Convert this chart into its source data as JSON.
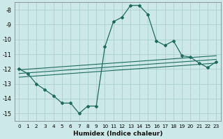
{
  "xlabel": "Humidex (Indice chaleur)",
  "background_color": "#cce8e8",
  "grid_color": "#aacfcf",
  "line_color": "#1e6b5e",
  "xlim": [
    -0.5,
    23.5
  ],
  "ylim": [
    -15.5,
    -7.5
  ],
  "yticks": [
    -15,
    -14,
    -13,
    -12,
    -11,
    -10,
    -9,
    -8
  ],
  "xticks": [
    0,
    1,
    2,
    3,
    4,
    5,
    6,
    7,
    8,
    9,
    10,
    11,
    12,
    13,
    14,
    15,
    16,
    17,
    18,
    19,
    20,
    21,
    22,
    23
  ],
  "main_x": [
    0,
    1,
    2,
    3,
    4,
    5,
    6,
    7,
    8,
    9,
    10,
    11,
    12,
    13,
    14,
    15,
    16,
    17,
    18,
    19,
    20,
    21,
    22,
    23
  ],
  "main_y": [
    -12.0,
    -12.3,
    -13.0,
    -13.4,
    -13.8,
    -14.3,
    -14.3,
    -15.0,
    -14.5,
    -14.5,
    -10.5,
    -8.8,
    -8.5,
    -7.7,
    -7.7,
    -8.3,
    -10.1,
    -10.4,
    -10.1,
    -11.1,
    -11.2,
    -11.6,
    -11.9,
    -11.5
  ],
  "line1_x": [
    0,
    23
  ],
  "line1_y": [
    -12.05,
    -11.1
  ],
  "line2_x": [
    0,
    23
  ],
  "line2_y": [
    -12.3,
    -11.35
  ],
  "line3_x": [
    0,
    23
  ],
  "line3_y": [
    -12.55,
    -11.6
  ]
}
